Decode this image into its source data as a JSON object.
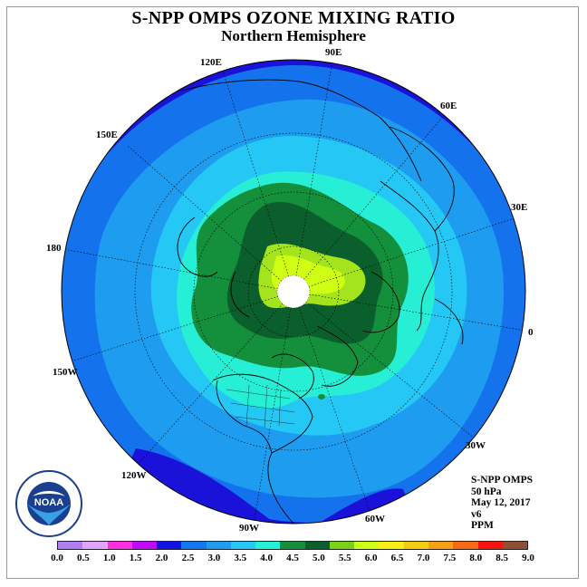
{
  "title": "S-NPP OMPS OZONE MIXING RATIO",
  "subtitle": "Northern Hemisphere",
  "longitude_labels": {
    "e90": "90E",
    "e60": "60E",
    "e30": "30E",
    "e120": "120E",
    "e150": "150E",
    "d180": "180",
    "zero": "0",
    "w150": "150W",
    "w120": "120W",
    "w90": "90W",
    "w60": "60W",
    "w30": "30W"
  },
  "info": {
    "instrument": "S-NPP OMPS",
    "level": "50 hPa",
    "date": "May 12, 2017",
    "version": "v6",
    "units": "PPM"
  },
  "colorbar": {
    "colors": [
      "#b27ff0",
      "#e0a4f8",
      "#ff2ee0",
      "#c00bf7",
      "#1212e6",
      "#1476f0",
      "#1e9cf0",
      "#25c7f5",
      "#26f0d7",
      "#148f3c",
      "#0b5f2d",
      "#7ad21a",
      "#cfff14",
      "#f8f014",
      "#f2cc14",
      "#f7a014",
      "#f76a14",
      "#f51212",
      "#8f4f32"
    ],
    "ticks": [
      "0.0",
      "0.5",
      "1.0",
      "1.5",
      "2.0",
      "2.5",
      "3.0",
      "3.5",
      "4.0",
      "4.5",
      "5.0",
      "5.5",
      "6.0",
      "6.5",
      "7.0",
      "7.5",
      "8.0",
      "8.5",
      "9.0"
    ]
  },
  "logo": {
    "text": "NOAA"
  }
}
